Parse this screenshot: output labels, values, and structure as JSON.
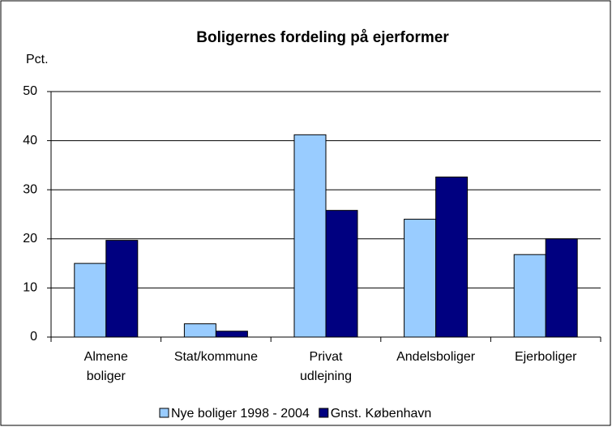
{
  "chart_data": {
    "type": "bar",
    "title": "Boligernes fordeling på ejerformer",
    "y_label": "Pct.",
    "categories": [
      "Almene boliger",
      "Stat/kommune",
      "Privat udlejning",
      "Andelsboliger",
      "Ejerboliger"
    ],
    "series": [
      {
        "name": "Nye boliger 1998 - 2004",
        "color": "#99ccff",
        "values": [
          15,
          2.7,
          41.2,
          24,
          16.8
        ]
      },
      {
        "name": "Gnst. København",
        "color": "#000080",
        "values": [
          19.7,
          1.2,
          25.8,
          32.6,
          20
        ]
      }
    ],
    "ylim": [
      0,
      50
    ],
    "yticks": [
      0,
      10,
      20,
      30,
      40,
      50
    ],
    "grid": true,
    "legend": "bottom"
  }
}
